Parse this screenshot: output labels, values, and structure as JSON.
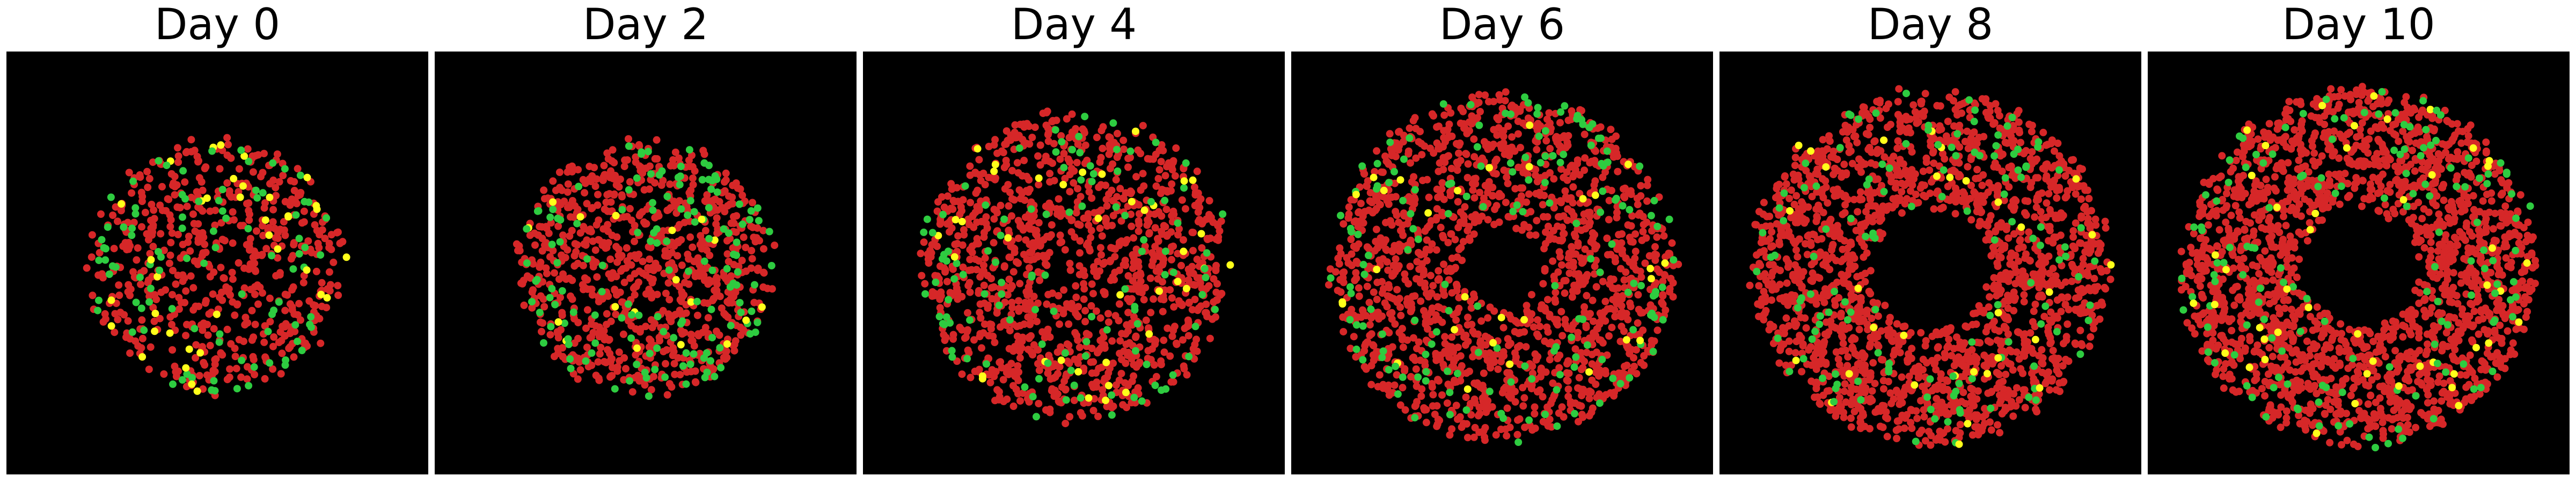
{
  "figure": {
    "background": "#000000",
    "colors": {
      "red": "#d62728",
      "green": "#2ecc40",
      "yellow": "#ffff1a"
    },
    "panels": [
      {
        "title": "Day 0",
        "pattern": "filled-disk",
        "n_cells": 700,
        "green_frac": 0.14,
        "yellow_frac": 0.03
      },
      {
        "title": "Day 2",
        "pattern": "filled-disk",
        "n_cells": 1000,
        "green_frac": 0.12,
        "yellow_frac": 0.02
      },
      {
        "title": "Day 4",
        "pattern": "disk-sparse-center",
        "n_cells": 1300,
        "green_frac": 0.09,
        "yellow_frac": 0.02
      },
      {
        "title": "Day 6",
        "pattern": "ring-small-hollow",
        "n_cells": 1700,
        "green_frac": 0.07,
        "yellow_frac": 0.015
      },
      {
        "title": "Day 8",
        "pattern": "ring-large-hollow",
        "n_cells": 2000,
        "green_frac": 0.06,
        "yellow_frac": 0.015
      },
      {
        "title": "Day 10",
        "pattern": "ring-large-hollow",
        "n_cells": 2200,
        "green_frac": 0.05,
        "yellow_frac": 0.015
      }
    ]
  }
}
